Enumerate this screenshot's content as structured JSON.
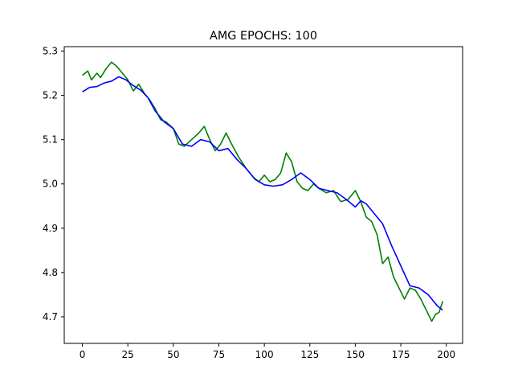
{
  "chart_data": {
    "type": "line",
    "title": "AMG EPOCHS: 100",
    "xlabel": "",
    "ylabel": "",
    "xlim": [
      -9.95,
      208.95
    ],
    "ylim": [
      4.64,
      5.31
    ],
    "xticks": [
      0,
      25,
      50,
      75,
      100,
      125,
      150,
      175,
      200
    ],
    "yticks": [
      4.7,
      4.8,
      4.9,
      5.0,
      5.1,
      5.2,
      5.3
    ],
    "grid": false,
    "series": [
      {
        "color": "#008000",
        "x": [
          0,
          3,
          5,
          8,
          10,
          13,
          16,
          19,
          22,
          25,
          28,
          31,
          34,
          37,
          40,
          43,
          46,
          50,
          53,
          56,
          60,
          64,
          67,
          70,
          73,
          76,
          79,
          82,
          86,
          90,
          94,
          97,
          100,
          103,
          106,
          109,
          112,
          115,
          118,
          121,
          124,
          127,
          130,
          134,
          138,
          142,
          146,
          150,
          153,
          156,
          159,
          162,
          165,
          168,
          171,
          174,
          177,
          180,
          183,
          186,
          189,
          192,
          194,
          196,
          198
        ],
        "y": [
          5.245,
          5.255,
          5.235,
          5.25,
          5.24,
          5.26,
          5.275,
          5.265,
          5.25,
          5.235,
          5.21,
          5.225,
          5.205,
          5.19,
          5.17,
          5.145,
          5.14,
          5.125,
          5.09,
          5.085,
          5.1,
          5.115,
          5.13,
          5.1,
          5.075,
          5.09,
          5.115,
          5.09,
          5.06,
          5.035,
          5.015,
          5.005,
          5.02,
          5.005,
          5.01,
          5.025,
          5.07,
          5.05,
          5.005,
          4.99,
          4.985,
          5.0,
          4.99,
          4.98,
          4.985,
          4.96,
          4.965,
          4.985,
          4.96,
          4.925,
          4.915,
          4.885,
          4.82,
          4.835,
          4.79,
          4.765,
          4.74,
          4.765,
          4.76,
          4.74,
          4.715,
          4.69,
          4.705,
          4.71,
          4.735
        ]
      },
      {
        "color": "#0000ff",
        "x": [
          0,
          4,
          8,
          12,
          16,
          20,
          24,
          28,
          32,
          36,
          40,
          45,
          50,
          55,
          60,
          65,
          70,
          75,
          80,
          85,
          90,
          95,
          100,
          105,
          110,
          115,
          120,
          125,
          130,
          135,
          140,
          145,
          150,
          153,
          156,
          160,
          165,
          170,
          175,
          180,
          185,
          190,
          195,
          198
        ],
        "y": [
          5.208,
          5.218,
          5.22,
          5.228,
          5.232,
          5.242,
          5.235,
          5.222,
          5.212,
          5.195,
          5.165,
          5.14,
          5.125,
          5.09,
          5.085,
          5.1,
          5.095,
          5.075,
          5.08,
          5.055,
          5.035,
          5.01,
          4.998,
          4.995,
          4.998,
          5.01,
          5.025,
          5.01,
          4.99,
          4.985,
          4.98,
          4.965,
          4.948,
          4.962,
          4.955,
          4.935,
          4.91,
          4.86,
          4.815,
          4.77,
          4.765,
          4.75,
          4.725,
          4.715
        ]
      }
    ]
  }
}
